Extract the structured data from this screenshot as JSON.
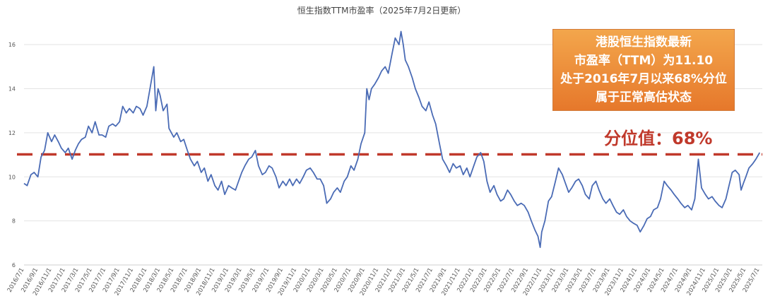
{
  "chart_data": {
    "type": "line",
    "title": "恒生指数TTM市盈率（2025年7月2日更新）",
    "xlabel": "",
    "ylabel": "",
    "ylim": [
      6,
      17
    ],
    "y_ticks": [
      6,
      8,
      10,
      12,
      14,
      16
    ],
    "x_ticks": [
      "2016/7/1",
      "2016/9/1",
      "2016/11/1",
      "2017/1/1",
      "2017/3/1",
      "2017/5/1",
      "2017/7/1",
      "2017/9/1",
      "2017/11/1",
      "2018/1/1",
      "2018/3/1",
      "2018/5/1",
      "2018/7/1",
      "2018/9/1",
      "2018/11/1",
      "2019/1/1",
      "2019/3/1",
      "2019/5/1",
      "2019/7/1",
      "2019/9/1",
      "2019/11/1",
      "2020/1/1",
      "2020/3/1",
      "2020/5/1",
      "2020/7/1",
      "2020/9/1",
      "2020/11/1",
      "2021/1/1",
      "2021/3/1",
      "2021/5/1",
      "2021/7/1",
      "2021/9/1",
      "2021/11/1",
      "2022/1/1",
      "2022/3/1",
      "2022/5/1",
      "2022/7/1",
      "2022/9/1",
      "2022/11/1",
      "2023/1/1",
      "2023/3/1",
      "2023/5/1",
      "2023/7/1",
      "2023/9/1",
      "2023/11/1",
      "2024/1/1",
      "2024/3/1",
      "2024/5/1",
      "2024/7/1",
      "2024/9/1",
      "2024/11/1",
      "2025/1/1",
      "2025/3/1",
      "2025/5/1",
      "2025/7/1"
    ],
    "grid": true,
    "colors": {
      "line": "#4a6bb5",
      "reference": "#c0392b",
      "callout": "#e8862f"
    },
    "series": [
      {
        "values": [
          [
            "2016/7/1",
            9.7
          ],
          [
            "2016/7/15",
            9.6
          ],
          [
            "2016/8/1",
            10.1
          ],
          [
            "2016/8/15",
            10.2
          ],
          [
            "2016/9/1",
            10.0
          ],
          [
            "2016/9/15",
            10.9
          ],
          [
            "2016/10/1",
            11.2
          ],
          [
            "2016/10/15",
            12.0
          ],
          [
            "2016/11/1",
            11.6
          ],
          [
            "2016/11/15",
            11.9
          ],
          [
            "2016/12/1",
            11.6
          ],
          [
            "2016/12/15",
            11.3
          ],
          [
            "2017/1/1",
            11.1
          ],
          [
            "2017/1/15",
            11.3
          ],
          [
            "2017/2/1",
            10.8
          ],
          [
            "2017/2/15",
            11.2
          ],
          [
            "2017/3/1",
            11.5
          ],
          [
            "2017/3/15",
            11.7
          ],
          [
            "2017/4/1",
            11.8
          ],
          [
            "2017/4/15",
            12.3
          ],
          [
            "2017/5/1",
            12.0
          ],
          [
            "2017/5/15",
            12.5
          ],
          [
            "2017/6/1",
            11.9
          ],
          [
            "2017/6/15",
            11.9
          ],
          [
            "2017/7/1",
            11.8
          ],
          [
            "2017/7/15",
            12.3
          ],
          [
            "2017/8/1",
            12.4
          ],
          [
            "2017/8/15",
            12.3
          ],
          [
            "2017/9/1",
            12.5
          ],
          [
            "2017/9/15",
            13.2
          ],
          [
            "2017/10/1",
            12.9
          ],
          [
            "2017/10/15",
            13.1
          ],
          [
            "2017/11/1",
            12.9
          ],
          [
            "2017/11/15",
            13.2
          ],
          [
            "2017/12/1",
            13.1
          ],
          [
            "2017/12/15",
            12.8
          ],
          [
            "2018/1/1",
            13.2
          ],
          [
            "2018/1/15",
            14.0
          ],
          [
            "2018/2/1",
            15.0
          ],
          [
            "2018/2/10",
            13.0
          ],
          [
            "2018/2/20",
            14.0
          ],
          [
            "2018/3/1",
            13.7
          ],
          [
            "2018/3/15",
            13.0
          ],
          [
            "2018/4/1",
            13.3
          ],
          [
            "2018/4/10",
            12.2
          ],
          [
            "2018/5/1",
            11.8
          ],
          [
            "2018/5/15",
            12.0
          ],
          [
            "2018/6/1",
            11.6
          ],
          [
            "2018/6/15",
            11.7
          ],
          [
            "2018/7/1",
            11.2
          ],
          [
            "2018/7/15",
            10.8
          ],
          [
            "2018/8/1",
            10.5
          ],
          [
            "2018/8/15",
            10.7
          ],
          [
            "2018/9/1",
            10.2
          ],
          [
            "2018/9/15",
            10.4
          ],
          [
            "2018/10/1",
            9.8
          ],
          [
            "2018/10/15",
            10.1
          ],
          [
            "2018/11/1",
            9.6
          ],
          [
            "2018/11/15",
            9.4
          ],
          [
            "2018/12/1",
            9.8
          ],
          [
            "2018/12/15",
            9.2
          ],
          [
            "2019/1/1",
            9.6
          ],
          [
            "2019/1/15",
            9.5
          ],
          [
            "2019/2/1",
            9.4
          ],
          [
            "2019/2/15",
            9.8
          ],
          [
            "2019/3/1",
            10.2
          ],
          [
            "2019/3/15",
            10.5
          ],
          [
            "2019/4/1",
            10.8
          ],
          [
            "2019/4/15",
            10.9
          ],
          [
            "2019/5/1",
            11.2
          ],
          [
            "2019/5/15",
            10.5
          ],
          [
            "2019/6/1",
            10.1
          ],
          [
            "2019/6/15",
            10.2
          ],
          [
            "2019/7/1",
            10.5
          ],
          [
            "2019/7/15",
            10.4
          ],
          [
            "2019/8/1",
            10.0
          ],
          [
            "2019/8/15",
            9.5
          ],
          [
            "2019/9/1",
            9.8
          ],
          [
            "2019/9/15",
            9.6
          ],
          [
            "2019/10/1",
            9.9
          ],
          [
            "2019/10/15",
            9.6
          ],
          [
            "2019/11/1",
            9.9
          ],
          [
            "2019/11/15",
            9.7
          ],
          [
            "2019/12/1",
            10.0
          ],
          [
            "2019/12/15",
            10.3
          ],
          [
            "2020/1/1",
            10.4
          ],
          [
            "2020/1/15",
            10.2
          ],
          [
            "2020/2/1",
            9.9
          ],
          [
            "2020/2/15",
            9.9
          ],
          [
            "2020/3/1",
            9.6
          ],
          [
            "2020/3/15",
            8.8
          ],
          [
            "2020/4/1",
            9.0
          ],
          [
            "2020/4/15",
            9.3
          ],
          [
            "2020/5/1",
            9.5
          ],
          [
            "2020/5/15",
            9.3
          ],
          [
            "2020/6/1",
            9.8
          ],
          [
            "2020/6/15",
            10.0
          ],
          [
            "2020/7/1",
            10.5
          ],
          [
            "2020/7/15",
            10.3
          ],
          [
            "2020/8/1",
            10.8
          ],
          [
            "2020/8/15",
            11.5
          ],
          [
            "2020/9/1",
            12.0
          ],
          [
            "2020/9/10",
            14.0
          ],
          [
            "2020/9/20",
            13.5
          ],
          [
            "2020/10/1",
            14.0
          ],
          [
            "2020/10/15",
            14.2
          ],
          [
            "2020/11/1",
            14.5
          ],
          [
            "2020/11/15",
            14.8
          ],
          [
            "2020/12/1",
            15.0
          ],
          [
            "2020/12/15",
            14.7
          ],
          [
            "2021/1/1",
            15.6
          ],
          [
            "2021/1/15",
            16.3
          ],
          [
            "2021/2/1",
            16.0
          ],
          [
            "2021/2/10",
            16.6
          ],
          [
            "2021/2/20",
            16.0
          ],
          [
            "2021/3/1",
            15.3
          ],
          [
            "2021/3/15",
            15.0
          ],
          [
            "2021/4/1",
            14.5
          ],
          [
            "2021/4/15",
            14.0
          ],
          [
            "2021/5/1",
            13.6
          ],
          [
            "2021/5/15",
            13.2
          ],
          [
            "2021/6/1",
            13.0
          ],
          [
            "2021/6/15",
            13.4
          ],
          [
            "2021/7/1",
            12.8
          ],
          [
            "2021/7/15",
            12.4
          ],
          [
            "2021/8/1",
            11.5
          ],
          [
            "2021/8/15",
            10.8
          ],
          [
            "2021/9/1",
            10.5
          ],
          [
            "2021/9/15",
            10.2
          ],
          [
            "2021/10/1",
            10.6
          ],
          [
            "2021/10/15",
            10.4
          ],
          [
            "2021/11/1",
            10.5
          ],
          [
            "2021/11/15",
            10.1
          ],
          [
            "2021/12/1",
            10.4
          ],
          [
            "2021/12/15",
            10.0
          ],
          [
            "2022/1/1",
            10.5
          ],
          [
            "2022/1/15",
            10.9
          ],
          [
            "2022/2/1",
            11.1
          ],
          [
            "2022/2/15",
            10.7
          ],
          [
            "2022/3/1",
            9.8
          ],
          [
            "2022/3/15",
            9.3
          ],
          [
            "2022/4/1",
            9.6
          ],
          [
            "2022/4/15",
            9.2
          ],
          [
            "2022/5/1",
            8.9
          ],
          [
            "2022/5/15",
            9.0
          ],
          [
            "2022/6/1",
            9.4
          ],
          [
            "2022/6/15",
            9.2
          ],
          [
            "2022/7/1",
            8.9
          ],
          [
            "2022/7/15",
            8.7
          ],
          [
            "2022/8/1",
            8.8
          ],
          [
            "2022/8/15",
            8.7
          ],
          [
            "2022/9/1",
            8.4
          ],
          [
            "2022/9/15",
            8.0
          ],
          [
            "2022/10/1",
            7.6
          ],
          [
            "2022/10/15",
            7.3
          ],
          [
            "2022/10/25",
            6.8
          ],
          [
            "2022/11/1",
            7.5
          ],
          [
            "2022/11/15",
            8.0
          ],
          [
            "2022/12/1",
            8.9
          ],
          [
            "2022/12/15",
            9.1
          ],
          [
            "2023/1/1",
            9.8
          ],
          [
            "2023/1/15",
            10.4
          ],
          [
            "2023/2/1",
            10.1
          ],
          [
            "2023/2/15",
            9.7
          ],
          [
            "2023/3/1",
            9.3
          ],
          [
            "2023/3/15",
            9.5
          ],
          [
            "2023/4/1",
            9.8
          ],
          [
            "2023/4/15",
            9.9
          ],
          [
            "2023/5/1",
            9.6
          ],
          [
            "2023/5/15",
            9.2
          ],
          [
            "2023/6/1",
            9.0
          ],
          [
            "2023/6/15",
            9.6
          ],
          [
            "2023/7/1",
            9.8
          ],
          [
            "2023/7/15",
            9.4
          ],
          [
            "2023/8/1",
            9.0
          ],
          [
            "2023/8/15",
            8.8
          ],
          [
            "2023/9/1",
            9.0
          ],
          [
            "2023/9/15",
            8.7
          ],
          [
            "2023/10/1",
            8.4
          ],
          [
            "2023/10/15",
            8.3
          ],
          [
            "2023/11/1",
            8.5
          ],
          [
            "2023/11/15",
            8.2
          ],
          [
            "2023/12/1",
            8.0
          ],
          [
            "2023/12/15",
            7.9
          ],
          [
            "2024/1/1",
            7.8
          ],
          [
            "2024/1/15",
            7.5
          ],
          [
            "2024/2/1",
            7.8
          ],
          [
            "2024/2/15",
            8.1
          ],
          [
            "2024/3/1",
            8.2
          ],
          [
            "2024/3/15",
            8.5
          ],
          [
            "2024/4/1",
            8.6
          ],
          [
            "2024/4/15",
            9.0
          ],
          [
            "2024/5/1",
            9.8
          ],
          [
            "2024/5/15",
            9.6
          ],
          [
            "2024/6/1",
            9.4
          ],
          [
            "2024/6/15",
            9.2
          ],
          [
            "2024/7/1",
            9.0
          ],
          [
            "2024/7/15",
            8.8
          ],
          [
            "2024/8/1",
            8.6
          ],
          [
            "2024/8/15",
            8.7
          ],
          [
            "2024/9/1",
            8.5
          ],
          [
            "2024/9/15",
            9.0
          ],
          [
            "2024/10/1",
            10.8
          ],
          [
            "2024/10/15",
            9.5
          ],
          [
            "2024/11/1",
            9.2
          ],
          [
            "2024/11/15",
            9.0
          ],
          [
            "2024/12/1",
            9.1
          ],
          [
            "2024/12/15",
            8.9
          ],
          [
            "2025/1/1",
            8.7
          ],
          [
            "2025/1/15",
            8.6
          ],
          [
            "2025/2/1",
            9.0
          ],
          [
            "2025/2/15",
            9.6
          ],
          [
            "2025/3/1",
            10.2
          ],
          [
            "2025/3/15",
            10.3
          ],
          [
            "2025/4/1",
            10.1
          ],
          [
            "2025/4/10",
            9.4
          ],
          [
            "2025/4/20",
            9.7
          ],
          [
            "2025/5/1",
            10.0
          ],
          [
            "2025/5/15",
            10.4
          ],
          [
            "2025/6/1",
            10.6
          ],
          [
            "2025/6/15",
            10.8
          ],
          [
            "2025/7/2",
            11.1
          ]
        ]
      }
    ],
    "reference_line": {
      "value": 11.02,
      "style": "dashed"
    },
    "annotations": {
      "callout_lines": [
        "港股恒生指数最新",
        "市盈率（TTM）为11.10",
        "处于2016年7月以来68%分位",
        "属于正常高估状态"
      ],
      "percentile_label": "分位值：68%"
    }
  }
}
